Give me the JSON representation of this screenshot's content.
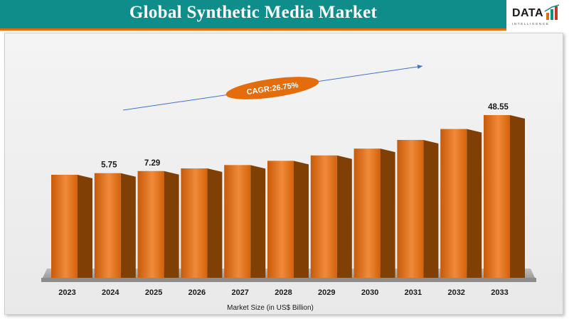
{
  "header": {
    "title": "Global Synthetic Media Market"
  },
  "logo": {
    "word": "DATA",
    "tagline": "INTELLIGENCE"
  },
  "cagr": {
    "label": "CAGR:26.75%"
  },
  "colors": {
    "bar_front": "#e46c0a",
    "bar_side": "#7f3f05",
    "title_bg": "#0f8d8b",
    "arrow": "#4472c4",
    "ellipse": "#e46c0a"
  },
  "chart_data": {
    "type": "bar",
    "categories": [
      "2023",
      "2024",
      "2025",
      "2026",
      "2027",
      "2028",
      "2029",
      "2030",
      "2031",
      "2032",
      "2033"
    ],
    "values": [
      4.54,
      5.75,
      7.29,
      9.24,
      11.71,
      14.84,
      18.81,
      23.85,
      30.23,
      38.31,
      48.55
    ],
    "data_labels": [
      "",
      "5.75",
      "7.29",
      "",
      "",
      "",
      "",
      "",
      "",
      "",
      "48.55"
    ],
    "xlabel": "Market Size (in US$ Billion)",
    "ylabel": "",
    "grid": false,
    "legend": "none"
  }
}
